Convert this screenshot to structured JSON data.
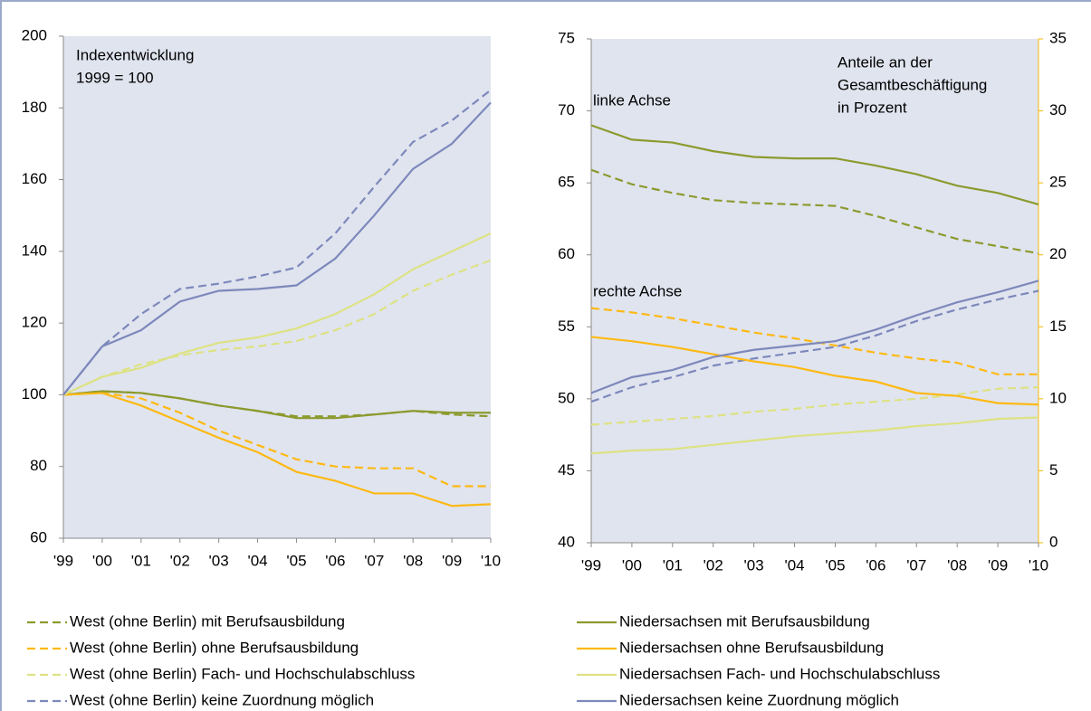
{
  "chart_data": [
    {
      "type": "line",
      "annotations": [
        "Indexentwicklung",
        "1999 = 100"
      ],
      "categories": [
        "'99",
        "'00",
        "'01",
        "'02",
        "'03",
        "'04",
        "'05",
        "'06",
        "'07",
        "'08",
        "'09",
        "'10"
      ],
      "ylim": [
        60,
        200
      ],
      "yticks": [
        60,
        80,
        100,
        120,
        140,
        160,
        180,
        200
      ],
      "series": [
        {
          "name": "West (ohne Berlin) mit Berufsausbildung",
          "color": "#8c9a2e",
          "dashed": true,
          "values": [
            100,
            101,
            100.5,
            99,
            97,
            95.5,
            94,
            94,
            94.5,
            95.5,
            94.5,
            94
          ]
        },
        {
          "name": "West (ohne Berlin) ohne Berufsausbildung",
          "color": "#fdb913",
          "dashed": true,
          "values": [
            100,
            100.5,
            99,
            95,
            90,
            86,
            82,
            80,
            79.5,
            79.5,
            74.5,
            74.5
          ]
        },
        {
          "name": "West (ohne Berlin) Fach- und Hochschulabschluss",
          "color": "#dde283",
          "dashed": true,
          "values": [
            100,
            105,
            108.5,
            111,
            112.5,
            113.5,
            115,
            118,
            122.5,
            129,
            133.5,
            137.5
          ]
        },
        {
          "name": "West (ohne Berlin) keine Zuordnung möglich",
          "color": "#7d88bb",
          "dashed": true,
          "values": [
            100,
            113.5,
            122.5,
            129.5,
            131,
            133,
            135.5,
            145,
            158,
            170.5,
            176.5,
            185
          ]
        },
        {
          "name": "Niedersachsen mit Berufsausbildung",
          "color": "#8c9a2e",
          "dashed": false,
          "values": [
            100,
            101,
            100.5,
            99,
            97,
            95.5,
            93.5,
            93.5,
            94.5,
            95.5,
            95,
            95
          ]
        },
        {
          "name": "Niedersachsen ohne Berufsausbildung",
          "color": "#fdb913",
          "dashed": false,
          "values": [
            100,
            100.5,
            97,
            92.5,
            88,
            84,
            78.5,
            76,
            72.5,
            72.5,
            69,
            69.5
          ]
        },
        {
          "name": "Niedersachsen Fach- und Hochschulabschluss",
          "color": "#dde283",
          "dashed": false,
          "values": [
            100,
            105,
            107.5,
            111.5,
            114.5,
            116,
            118.5,
            122.5,
            128,
            135,
            140,
            145
          ]
        },
        {
          "name": "Niedersachsen keine Zuordnung möglich",
          "color": "#7d88bb",
          "dashed": false,
          "values": [
            100,
            113.5,
            118,
            126,
            129,
            129.5,
            130.5,
            138,
            150,
            163,
            170,
            181.5
          ]
        }
      ]
    },
    {
      "type": "line",
      "annotations": [
        "Anteile an der",
        "Gesamtbeschäftigung",
        "in Prozent",
        "linke Achse",
        "rechte Achse"
      ],
      "categories": [
        "'99",
        "'00",
        "'01",
        "'02",
        "'03",
        "'04",
        "'05",
        "'06",
        "'07",
        "'08",
        "'09",
        "'10"
      ],
      "ylim": [
        40,
        75
      ],
      "yticks": [
        40,
        45,
        50,
        55,
        60,
        65,
        70,
        75
      ],
      "y2lim": [
        0,
        35
      ],
      "y2ticks": [
        0,
        5,
        10,
        15,
        20,
        25,
        30,
        35
      ],
      "y2color": "#f5b800",
      "series": [
        {
          "color": "#8c9a2e",
          "dashed": true,
          "values": [
            65.9,
            64.9,
            64.3,
            63.8,
            63.6,
            63.5,
            63.4,
            62.7,
            61.9,
            61.1,
            60.6,
            60.1
          ]
        },
        {
          "color": "#fdb913",
          "dashed": true,
          "axis": "y2",
          "values": [
            16.3,
            16.0,
            15.6,
            15.1,
            14.6,
            14.2,
            13.7,
            13.2,
            12.8,
            12.5,
            11.7,
            11.7
          ]
        },
        {
          "color": "#dde283",
          "dashed": true,
          "axis": "y2",
          "values": [
            8.2,
            8.4,
            8.6,
            8.8,
            9.1,
            9.3,
            9.6,
            9.8,
            10.0,
            10.3,
            10.7,
            10.8
          ]
        },
        {
          "color": "#7d88bb",
          "dashed": true,
          "axis": "y2",
          "values": [
            9.8,
            10.8,
            11.5,
            12.3,
            12.8,
            13.2,
            13.6,
            14.4,
            15.4,
            16.2,
            16.9,
            17.5
          ]
        },
        {
          "color": "#8c9a2e",
          "dashed": false,
          "values": [
            69,
            68,
            67.8,
            67.2,
            66.8,
            66.7,
            66.7,
            66.2,
            65.6,
            64.8,
            64.3,
            63.5
          ]
        },
        {
          "color": "#fdb913",
          "dashed": false,
          "axis": "y2",
          "values": [
            14.3,
            14.0,
            13.6,
            13.1,
            12.6,
            12.2,
            11.6,
            11.2,
            10.4,
            10.2,
            9.7,
            9.6
          ]
        },
        {
          "color": "#dde283",
          "dashed": false,
          "axis": "y2",
          "values": [
            6.2,
            6.4,
            6.5,
            6.8,
            7.1,
            7.4,
            7.6,
            7.8,
            8.1,
            8.3,
            8.6,
            8.7
          ]
        },
        {
          "color": "#7d88bb",
          "dashed": false,
          "axis": "y2",
          "values": [
            10.4,
            11.5,
            12.0,
            12.9,
            13.4,
            13.7,
            14.0,
            14.8,
            15.8,
            16.7,
            17.4,
            18.2
          ]
        }
      ]
    }
  ]
}
